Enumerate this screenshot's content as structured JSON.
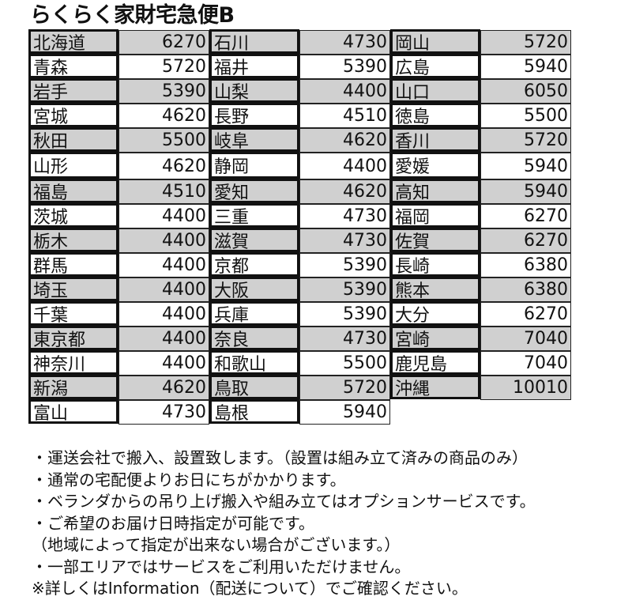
{
  "title": "らくらく家財宅急便B",
  "columns": [
    [
      [
        "北海道",
        "6270"
      ],
      [
        "青森",
        "5720"
      ],
      [
        "岩手",
        "5390"
      ],
      [
        "宮城",
        "4620"
      ],
      [
        "秋田",
        "5500"
      ],
      [
        "山形",
        "4620"
      ],
      [
        "福島",
        "4510"
      ],
      [
        "茨城",
        "4400"
      ],
      [
        "栃木",
        "4400"
      ],
      [
        "群馬",
        "4400"
      ],
      [
        "埼玉",
        "4400"
      ],
      [
        "千葉",
        "4400"
      ],
      [
        "東京都",
        "4400"
      ],
      [
        "神奈川",
        "4400"
      ],
      [
        "新潟",
        "4620"
      ],
      [
        "富山",
        "4730"
      ]
    ],
    [
      [
        "石川",
        "4730"
      ],
      [
        "福井",
        "5390"
      ],
      [
        "山梨",
        "4400"
      ],
      [
        "長野",
        "4510"
      ],
      [
        "岐阜",
        "4620"
      ],
      [
        "静岡",
        "4400"
      ],
      [
        "愛知",
        "4620"
      ],
      [
        "三重",
        "4730"
      ],
      [
        "滋賀",
        "4730"
      ],
      [
        "京都",
        "5390"
      ],
      [
        "大阪",
        "5390"
      ],
      [
        "兵庫",
        "5390"
      ],
      [
        "奈良",
        "4730"
      ],
      [
        "和歌山",
        "5500"
      ],
      [
        "鳥取",
        "5720"
      ],
      [
        "島根",
        "5940"
      ]
    ],
    [
      [
        "岡山",
        "5720"
      ],
      [
        "広島",
        "5940"
      ],
      [
        "山口",
        "6050"
      ],
      [
        "徳島",
        "5500"
      ],
      [
        "香川",
        "5720"
      ],
      [
        "愛媛",
        "5940"
      ],
      [
        "高知",
        "5940"
      ],
      [
        "福岡",
        "6270"
      ],
      [
        "佐賀",
        "6270"
      ],
      [
        "長崎",
        "6380"
      ],
      [
        "熊本",
        "6380"
      ],
      [
        "大分",
        "6270"
      ],
      [
        "宮崎",
        "7040"
      ],
      [
        "鹿児島",
        "7040"
      ],
      [
        "沖縄",
        "10010"
      ]
    ]
  ],
  "notes": [
    "・運送会社で搬入、設置致します。（設置は組み立て済みの商品のみ）",
    "・通常の宅配便よりお日にちがかかります。",
    "・ベランダからの吊り上げ搬入や組み立てはオプションサービスです。",
    "・ご希望のお届け日時指定が可能です。",
    "（地域によって指定が出来ない場合がございます。）",
    "・一部エリアではサービスをご利用いただけません。",
    "※詳しくはInformation（配送について）でご確認ください。"
  ],
  "colors": {
    "stripe": "#d0d0d0",
    "border": "#111111"
  }
}
